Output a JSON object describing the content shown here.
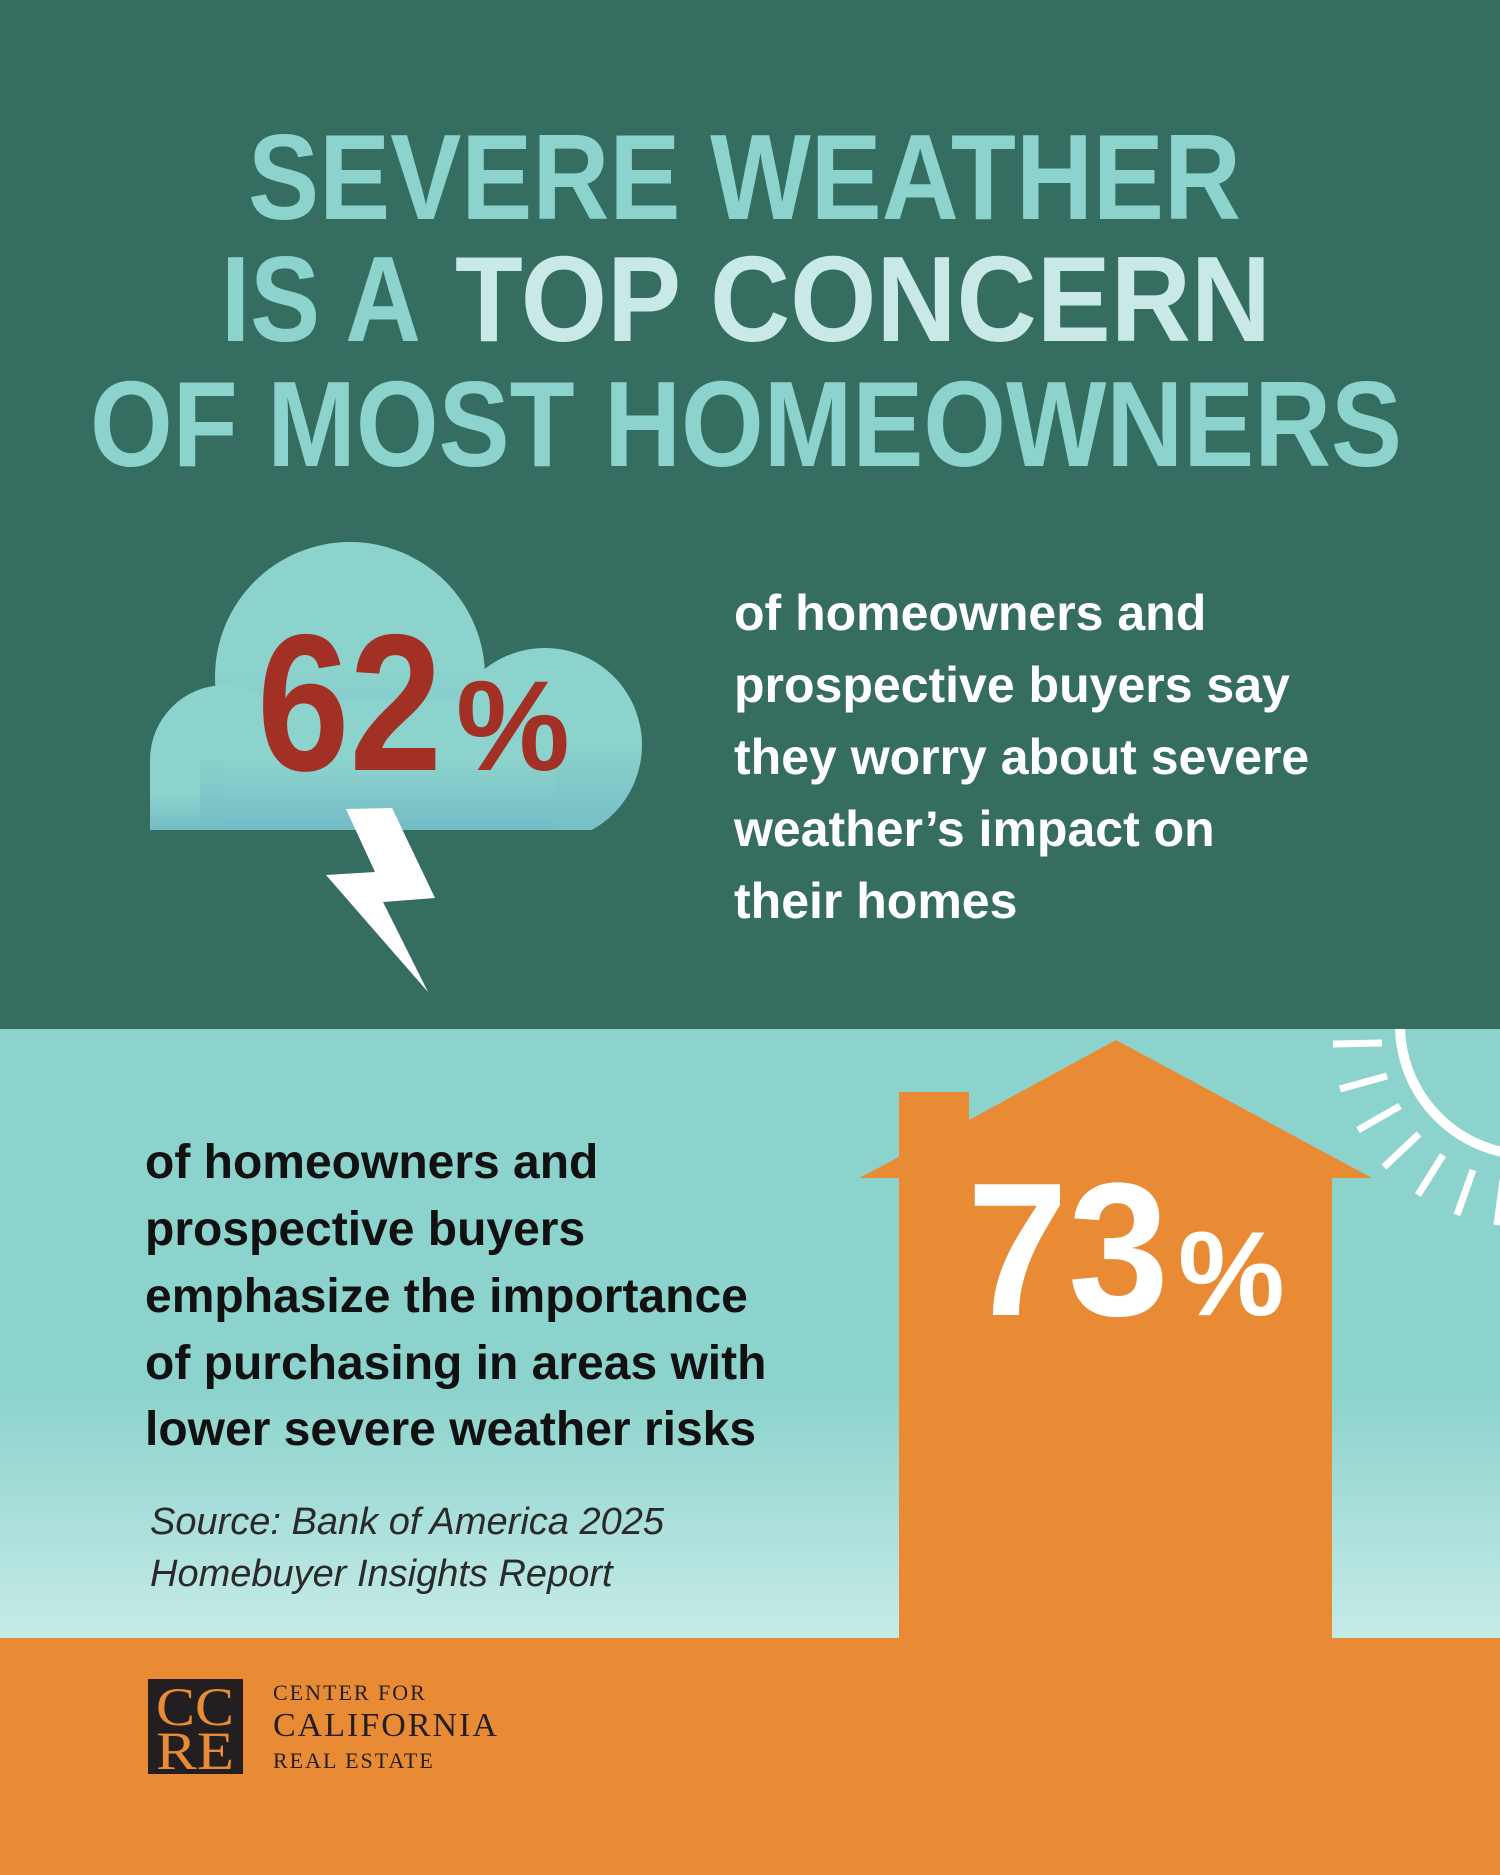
{
  "colors": {
    "dark_green": "#356e60",
    "light_teal": "#8dd3cd",
    "pale_teal": "#c8e9e6",
    "orange": "#e98b35",
    "red": "#a33024",
    "logo_dark": "#231f20"
  },
  "title": {
    "line1": "SEVERE WEATHER",
    "line2_prefix": "IS A",
    "line2_highlight": "TOP CONCERN",
    "line3": "OF MOST HOMEOWNERS"
  },
  "stat1": {
    "number": "62",
    "percent_sign": "%",
    "icon": "storm-cloud-lightning-icon",
    "lines": [
      "of homeowners and",
      "prospective buyers say",
      "they worry about severe",
      "weather’s impact on",
      "their homes"
    ]
  },
  "stat2": {
    "number": "73",
    "percent_sign": "%",
    "icon": "house-icon",
    "decoration": "sun-icon",
    "lines": [
      "of homeowners and",
      "prospective buyers",
      "emphasize the importance",
      "of purchasing in areas with",
      "lower severe weather risks"
    ]
  },
  "source": {
    "line1": "Source: Bank of America 2025",
    "line2": "Homebuyer Insights Report"
  },
  "logo": {
    "mark_top": "CC",
    "mark_bottom": "RE",
    "line1": "CENTER FOR",
    "line2": "CALIFORNIA",
    "line3": "REAL ESTATE"
  }
}
